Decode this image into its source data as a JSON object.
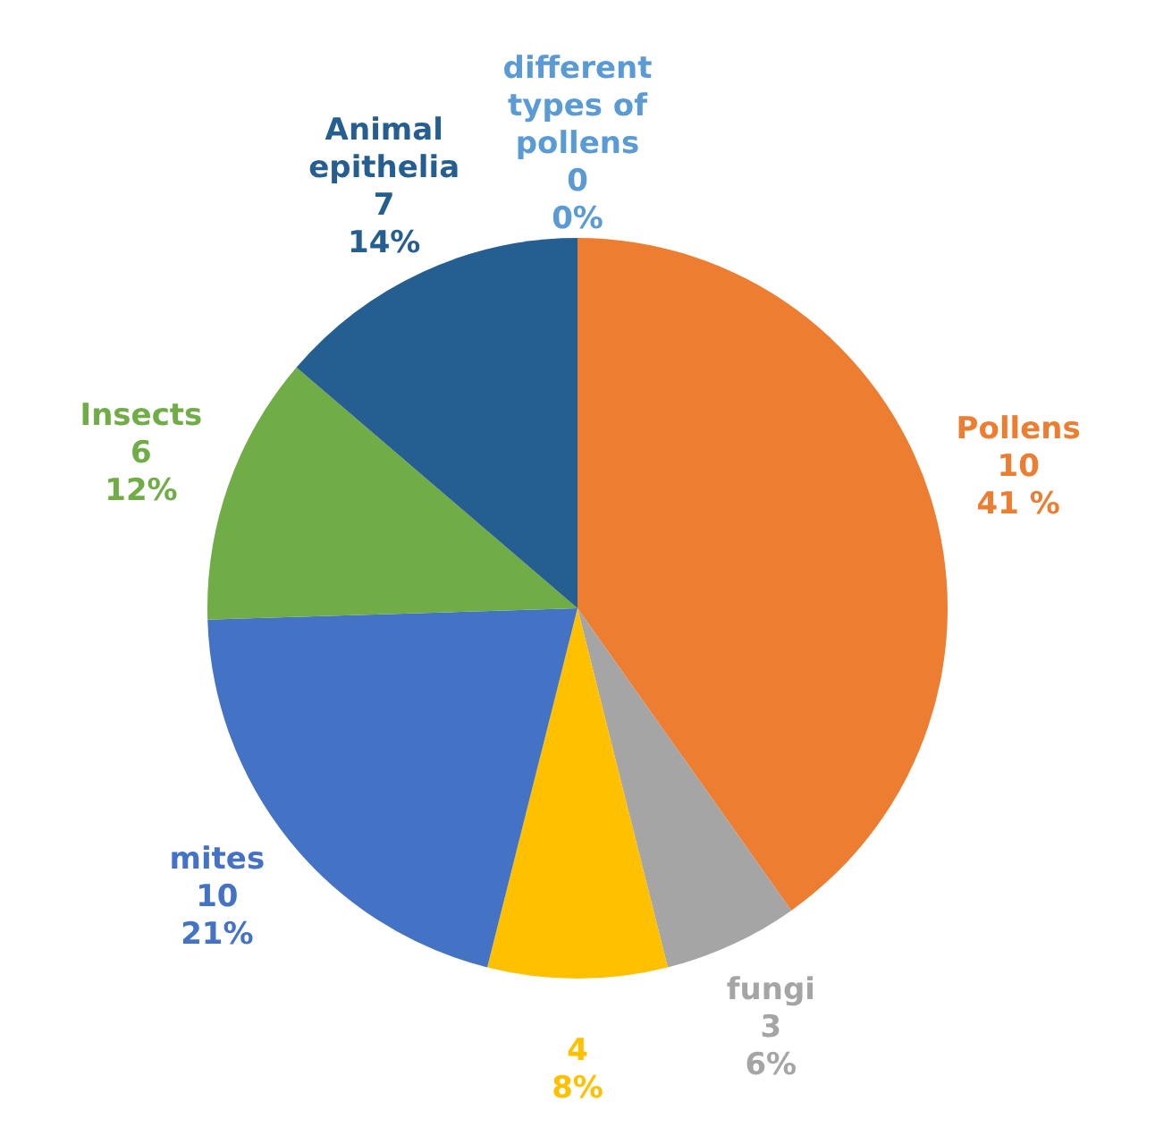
{
  "chart_data": {
    "type": "pie",
    "categories": [
      "different types of pollens",
      "Pollens",
      "fungi",
      null,
      "mites",
      "Insects",
      "Animal epithelia"
    ],
    "values": [
      0,
      41,
      6,
      8,
      21,
      12,
      14
    ],
    "value_labels": [
      "0\n0%",
      "10\n41 %",
      "3\n6%",
      "4\n8%",
      "10\n21%",
      "6\n12%",
      "7\n14%"
    ],
    "colors": [
      "#5b9bd5",
      "#ed7d31",
      "#a5a5a5",
      "#ffc000",
      "#4472c4",
      "#70ad47",
      "#255e91"
    ],
    "legend": false
  }
}
